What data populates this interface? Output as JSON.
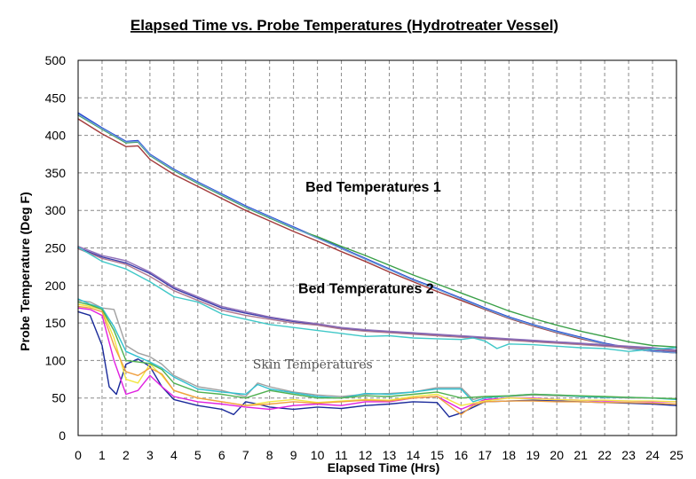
{
  "chart_data": {
    "type": "line",
    "title": "Elapsed Time vs. Probe Temperatures (Hydrotreater Vessel)",
    "xlabel": "Elapsed Time (Hrs)",
    "ylabel": "Probe Temperature (Deg F)",
    "xlim": [
      0,
      25
    ],
    "ylim": [
      0,
      500
    ],
    "xticks": [
      "0",
      "1",
      "2",
      "3",
      "4",
      "5",
      "6",
      "7",
      "8",
      "9",
      "10",
      "11",
      "12",
      "13",
      "14",
      "15",
      "16",
      "17",
      "18",
      "19",
      "20",
      "21",
      "22",
      "23",
      "24",
      "25"
    ],
    "yticks": [
      "0",
      "50",
      "100",
      "150",
      "200",
      "250",
      "300",
      "350",
      "400",
      "450",
      "500"
    ],
    "grid": true,
    "annotations": [
      {
        "text": "Bed Temperatures 1",
        "x": 9.5,
        "y": 325,
        "style": "bold"
      },
      {
        "text": "Bed Temperatures 2",
        "x": 9.2,
        "y": 190,
        "style": "bold"
      },
      {
        "text": "Skin Temperatures",
        "x": 7.3,
        "y": 89,
        "style": "serif"
      }
    ],
    "series": [
      {
        "color": "#1f3fd0",
        "x": [
          0,
          1,
          2,
          2.5,
          3,
          4,
          5,
          6,
          7,
          8,
          9,
          10,
          11,
          12,
          13,
          14,
          15,
          16,
          17,
          18,
          19,
          20,
          21,
          22,
          23,
          24,
          25
        ],
        "y": [
          430,
          410,
          392,
          393,
          375,
          355,
          338,
          322,
          306,
          292,
          278,
          264,
          250,
          236,
          222,
          208,
          196,
          183,
          170,
          158,
          148,
          139,
          131,
          123,
          117,
          113,
          111
        ]
      },
      {
        "color": "#3aa048",
        "x": [
          0,
          1,
          2,
          2.5,
          3,
          4,
          5,
          6,
          7,
          8,
          9,
          10,
          11,
          12,
          13,
          14,
          15,
          16,
          17,
          18,
          19,
          20,
          21,
          22,
          23,
          24,
          25
        ],
        "y": [
          427,
          408,
          390,
          391,
          373,
          353,
          336,
          320,
          304,
          290,
          276,
          265,
          252,
          240,
          227,
          214,
          202,
          190,
          178,
          166,
          156,
          147,
          139,
          132,
          125,
          120,
          118
        ]
      },
      {
        "color": "#a33a3a",
        "x": [
          0,
          1,
          2,
          2.5,
          3,
          4,
          5,
          6,
          7,
          8,
          9,
          10,
          11,
          12,
          13,
          14,
          15,
          16,
          17,
          18,
          19,
          20,
          21,
          22,
          23,
          24,
          25
        ],
        "y": [
          422,
          402,
          385,
          386,
          368,
          348,
          332,
          316,
          300,
          286,
          272,
          259,
          245,
          232,
          218,
          205,
          192,
          180,
          168,
          156,
          146,
          137,
          129,
          122,
          116,
          112,
          110
        ]
      },
      {
        "color": "#6fa0d8",
        "x": [
          0,
          1,
          2,
          2.5,
          3,
          4,
          5,
          6,
          7,
          8,
          9,
          10,
          11,
          12,
          13,
          14,
          15,
          16,
          17,
          18,
          19,
          20,
          21,
          22,
          23,
          24,
          25
        ],
        "y": [
          428,
          409,
          391,
          392,
          374,
          354,
          337,
          321,
          305,
          291,
          277,
          263,
          249,
          235,
          221,
          207,
          195,
          182,
          169,
          157,
          147,
          138,
          130,
          122,
          116,
          112,
          110
        ]
      },
      {
        "color": "#3a3aaa",
        "x": [
          0,
          1,
          2,
          3,
          4,
          5,
          6,
          7,
          8,
          9,
          10,
          11,
          12,
          13,
          14,
          15,
          16,
          17,
          18,
          19,
          20,
          21,
          22,
          23,
          24,
          25
        ],
        "y": [
          250,
          238,
          230,
          216,
          196,
          183,
          170,
          163,
          157,
          152,
          148,
          143,
          140,
          138,
          136,
          134,
          132,
          130,
          128,
          126,
          124,
          122,
          120,
          118,
          116,
          113
        ]
      },
      {
        "color": "#9070b8",
        "x": [
          0,
          1,
          2,
          3,
          4,
          5,
          6,
          7,
          8,
          9,
          10,
          11,
          12,
          13,
          14,
          15,
          16,
          17,
          18,
          19,
          20,
          21,
          22,
          23,
          24,
          25
        ],
        "y": [
          252,
          240,
          233,
          218,
          198,
          185,
          172,
          165,
          158,
          153,
          149,
          144,
          141,
          139,
          137,
          135,
          133,
          131,
          129,
          127,
          125,
          123,
          121,
          119,
          117,
          114
        ]
      },
      {
        "color": "#b07890",
        "x": [
          0,
          1,
          2,
          3,
          4,
          5,
          6,
          7,
          8,
          9,
          10,
          11,
          12,
          13,
          14,
          15,
          16,
          17,
          18,
          19,
          20,
          21,
          22,
          23,
          24,
          25
        ],
        "y": [
          249,
          236,
          228,
          212,
          193,
          180,
          167,
          160,
          155,
          150,
          147,
          142,
          139,
          137,
          135,
          133,
          131,
          129,
          127,
          125,
          123,
          121,
          119,
          117,
          115,
          112
        ]
      },
      {
        "color": "#40c8c8",
        "x": [
          0,
          1,
          2,
          3,
          4,
          5,
          6,
          7,
          8,
          9,
          10,
          11,
          12,
          13,
          14,
          15,
          16,
          16.5,
          17,
          17.5,
          18,
          19,
          20,
          21,
          22,
          23,
          24,
          25
        ],
        "y": [
          251,
          232,
          222,
          205,
          185,
          178,
          162,
          155,
          148,
          144,
          140,
          136,
          132,
          133,
          130,
          129,
          128,
          130,
          126,
          116,
          122,
          121,
          119,
          117,
          116,
          112,
          115,
          117
        ]
      },
      {
        "color": "#1a2a9a",
        "x": [
          0,
          0.5,
          1,
          1.3,
          1.6,
          2,
          2.5,
          3,
          3.5,
          4,
          5,
          6,
          6.5,
          7,
          7.5,
          8,
          9,
          10,
          11,
          12,
          13,
          14,
          15,
          15.5,
          16,
          17,
          18,
          19,
          20,
          21,
          22,
          23,
          24,
          25
        ],
        "y": [
          165,
          160,
          120,
          65,
          55,
          95,
          102,
          92,
          65,
          48,
          40,
          35,
          28,
          45,
          42,
          38,
          35,
          38,
          36,
          40,
          42,
          45,
          44,
          25,
          30,
          45,
          46,
          47,
          46,
          45,
          44,
          43,
          42,
          40
        ]
      },
      {
        "color": "#e020e0",
        "x": [
          0,
          0.5,
          1,
          1.5,
          2,
          2.5,
          3,
          3.5,
          4,
          5,
          6,
          7,
          8,
          9,
          10,
          11,
          12,
          13,
          14,
          15,
          16,
          17,
          18,
          19,
          20,
          21,
          22,
          23,
          24,
          25
        ],
        "y": [
          170,
          168,
          160,
          100,
          55,
          60,
          80,
          65,
          52,
          45,
          42,
          38,
          35,
          40,
          42,
          40,
          45,
          45,
          50,
          52,
          35,
          48,
          50,
          50,
          48,
          47,
          46,
          46,
          45,
          45
        ]
      },
      {
        "color": "#f2e640",
        "x": [
          0,
          0.5,
          1,
          1.5,
          2,
          2.5,
          3,
          3.5,
          4,
          5,
          6,
          7,
          8,
          9,
          10,
          11,
          12,
          13,
          14,
          15,
          16,
          17,
          18,
          19,
          20,
          21,
          22,
          23,
          24,
          25
        ],
        "y": [
          175,
          172,
          168,
          130,
          75,
          70,
          95,
          80,
          60,
          50,
          45,
          40,
          45,
          48,
          44,
          46,
          48,
          47,
          52,
          55,
          40,
          46,
          50,
          49,
          48,
          47,
          47,
          46,
          46,
          45
        ]
      },
      {
        "color": "#a0a0a0",
        "x": [
          0,
          0.5,
          1,
          1.5,
          2,
          2.5,
          3,
          3.5,
          4,
          5,
          6,
          7,
          7.5,
          8,
          9,
          10,
          11,
          12,
          13,
          14,
          15,
          16,
          16.5,
          17,
          18,
          19,
          20,
          21,
          22,
          23,
          24,
          25
        ],
        "y": [
          180,
          178,
          170,
          168,
          120,
          110,
          105,
          95,
          80,
          65,
          60,
          52,
          70,
          65,
          58,
          54,
          52,
          55,
          56,
          58,
          64,
          64,
          48,
          52,
          52,
          54,
          53,
          52,
          51,
          50,
          50,
          49
        ]
      },
      {
        "color": "#30c0d0",
        "x": [
          0,
          0.5,
          1,
          1.5,
          2,
          2.5,
          3,
          3.5,
          4,
          5,
          6,
          7,
          7.5,
          8,
          9,
          10,
          11,
          12,
          13,
          14,
          15,
          16,
          16.5,
          17,
          18,
          19,
          20,
          21,
          22,
          23,
          24,
          25
        ],
        "y": [
          182,
          175,
          170,
          145,
          112,
          105,
          98,
          90,
          78,
          62,
          58,
          55,
          68,
          62,
          57,
          52,
          50,
          56,
          55,
          58,
          62,
          62,
          45,
          50,
          53,
          55,
          54,
          52,
          51,
          51,
          50,
          48
        ]
      },
      {
        "color": "#f0a040",
        "x": [
          0,
          0.5,
          1,
          1.5,
          2,
          2.5,
          3,
          3.5,
          4,
          5,
          6,
          7,
          8,
          9,
          10,
          11,
          12,
          13,
          14,
          15,
          16,
          16.5,
          17,
          18,
          19,
          20,
          21,
          22,
          23,
          24,
          25
        ],
        "y": [
          172,
          170,
          165,
          120,
          85,
          80,
          90,
          82,
          60,
          50,
          45,
          40,
          42,
          45,
          43,
          45,
          47,
          46,
          50,
          52,
          28,
          40,
          45,
          46,
          46,
          45,
          45,
          44,
          44,
          43,
          42
        ]
      },
      {
        "color": "#50b050",
        "x": [
          0,
          0.5,
          1,
          1.5,
          2,
          2.5,
          3,
          3.5,
          4,
          5,
          6,
          7,
          8,
          9,
          10,
          11,
          12,
          13,
          14,
          15,
          16,
          17,
          18,
          19,
          20,
          21,
          22,
          23,
          24,
          25
        ],
        "y": [
          178,
          174,
          168,
          140,
          100,
          98,
          96,
          88,
          70,
          58,
          55,
          50,
          60,
          55,
          50,
          50,
          53,
          52,
          55,
          58,
          50,
          52,
          53,
          55,
          54,
          53,
          52,
          51,
          50,
          49
        ]
      }
    ]
  }
}
